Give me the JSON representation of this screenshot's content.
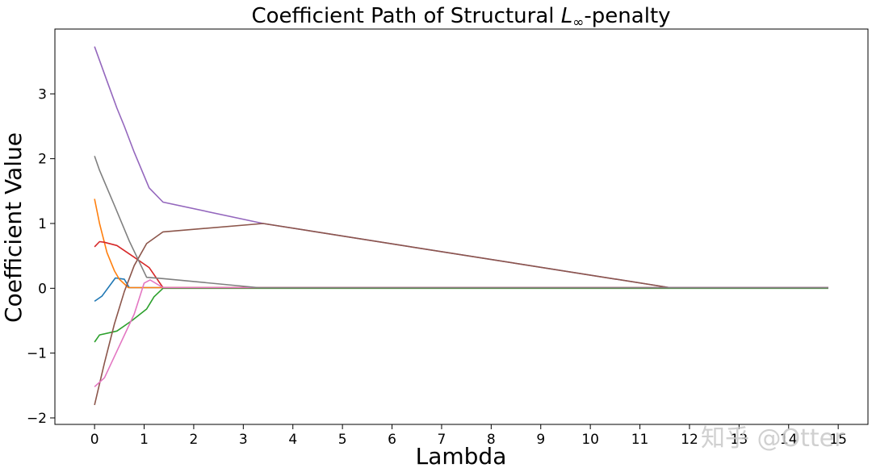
{
  "chart_data": {
    "type": "line",
    "title": {
      "prefix": "Coefficient Path of Structural ",
      "symbol": "L",
      "subscript": "∞",
      "suffix": "-penalty"
    },
    "xlabel": "Lambda",
    "ylabel": "Coefficient Value",
    "xlim": [
      -0.8,
      15.6
    ],
    "ylim": [
      -2.1,
      4.0
    ],
    "xticks": [
      0,
      1,
      2,
      3,
      4,
      5,
      6,
      7,
      8,
      9,
      10,
      11,
      12,
      13,
      14,
      15
    ],
    "yticks": [
      -2,
      -1,
      0,
      1,
      2,
      3
    ],
    "ytick_labels": [
      "−2",
      "−1",
      "0",
      "1",
      "2",
      "3"
    ],
    "grid": false,
    "series": [
      {
        "color": "#1f77b4",
        "x": [
          0,
          0.15,
          0.42,
          0.6,
          0.7,
          14.8
        ],
        "y": [
          -0.2,
          -0.12,
          0.16,
          0.14,
          0.01,
          0.01
        ]
      },
      {
        "color": "#ff7f0e",
        "x": [
          0,
          0.1,
          0.25,
          0.4,
          0.5,
          0.68,
          14.8
        ],
        "y": [
          1.38,
          1.0,
          0.55,
          0.27,
          0.14,
          0.01,
          0.01
        ]
      },
      {
        "color": "#2ca02c",
        "x": [
          0,
          0.1,
          0.45,
          0.75,
          1.05,
          1.2,
          1.38,
          14.8
        ],
        "y": [
          -0.83,
          -0.72,
          -0.66,
          -0.5,
          -0.32,
          -0.13,
          0.0,
          0.0
        ]
      },
      {
        "color": "#d62728",
        "x": [
          0,
          0.1,
          0.2,
          0.45,
          0.8,
          1.1,
          1.38,
          14.8
        ],
        "y": [
          0.64,
          0.72,
          0.71,
          0.66,
          0.48,
          0.32,
          0.01,
          0.01
        ]
      },
      {
        "color": "#9467bd",
        "x": [
          0,
          0.25,
          0.45,
          0.6,
          0.8,
          1.1,
          1.38,
          3.4,
          11.6,
          14.8
        ],
        "y": [
          3.73,
          3.2,
          2.78,
          2.5,
          2.1,
          1.55,
          1.33,
          1.0,
          0.01,
          0.01
        ]
      },
      {
        "color": "#8c564b",
        "x": [
          0,
          0.2,
          0.4,
          0.6,
          0.8,
          1.05,
          1.38,
          3.4,
          11.6,
          14.8
        ],
        "y": [
          -1.8,
          -1.15,
          -0.55,
          -0.05,
          0.35,
          0.69,
          0.87,
          1.0,
          0.01,
          0.01
        ]
      },
      {
        "color": "#e377c2",
        "x": [
          0,
          0.2,
          0.45,
          0.8,
          1.0,
          1.12,
          1.38,
          14.8
        ],
        "y": [
          -1.52,
          -1.38,
          -0.97,
          -0.4,
          0.08,
          0.13,
          0.01,
          0.01
        ]
      },
      {
        "color": "#7f7f7f",
        "x": [
          0,
          0.1,
          0.4,
          0.7,
          1.05,
          1.38,
          3.3,
          14.8
        ],
        "y": [
          2.04,
          1.82,
          1.28,
          0.73,
          0.17,
          0.15,
          0.01,
          0.01
        ]
      }
    ]
  },
  "watermark": {
    "text": "知乎 @Otter"
  }
}
